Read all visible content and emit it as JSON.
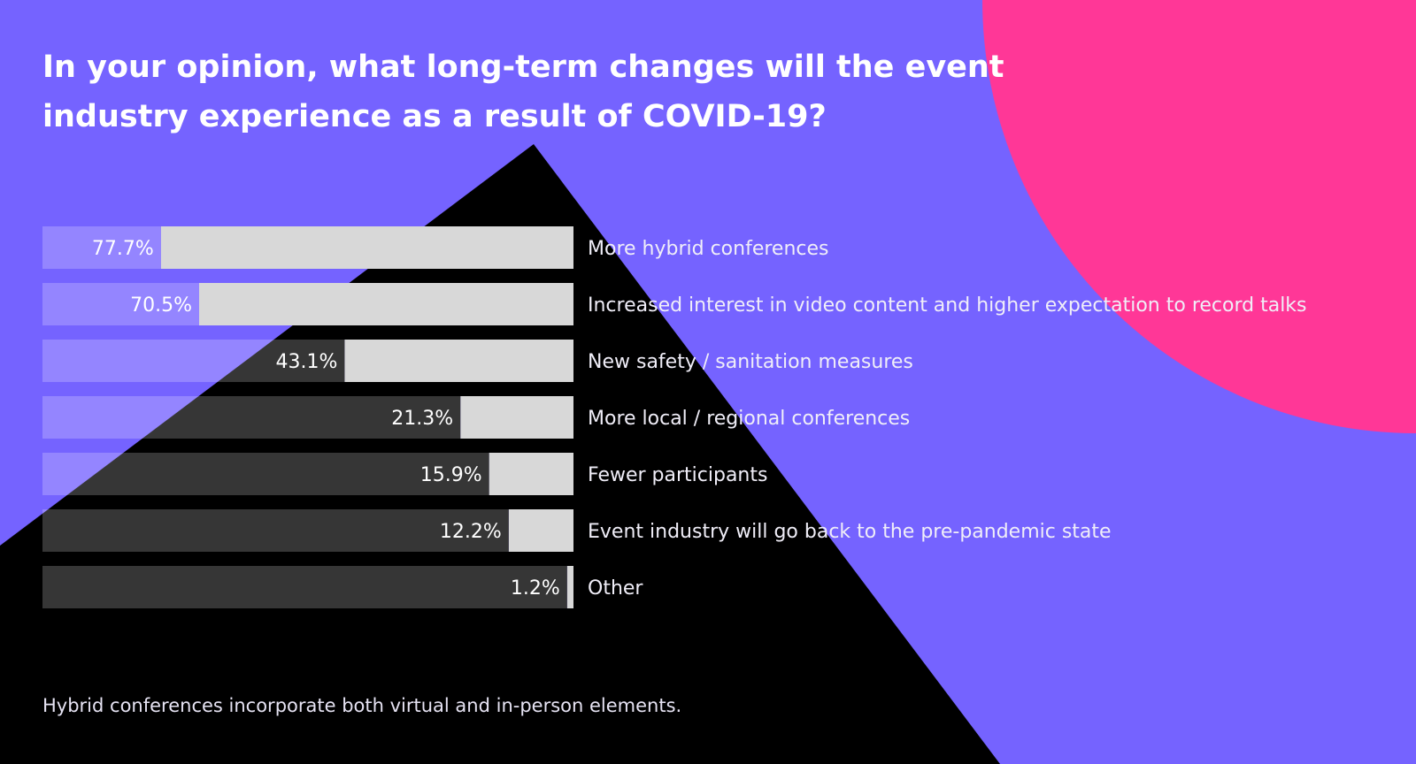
{
  "title": "In your opinion, what long-term changes will the event industry experience as a result of COVID-19?",
  "footnote": "Hybrid conferences incorporate both virtual and in-person elements.",
  "colors": {
    "background": "#7563ff",
    "decor_pink": "#ff3797",
    "decor_black": "#000000",
    "bar_remainder": "#d8d8d8",
    "bar_value_on_purple": "#9485ff",
    "bar_value_on_black": "#363636",
    "label_text": "#f0eef8"
  },
  "chart_data": {
    "type": "bar",
    "orientation": "horizontal",
    "categories": [
      "More hybrid conferences",
      "Increased interest in video content and higher expectation to record talks",
      "New safety / sanitation measures",
      "More local / regional conferences",
      "Fewer participants",
      "Event industry will go back to the pre-pandemic state",
      "Other"
    ],
    "values": [
      77.7,
      70.5,
      43.1,
      21.3,
      15.9,
      12.2,
      1.2
    ],
    "value_labels": [
      "77.7%",
      "70.5%",
      "43.1%",
      "21.3%",
      "15.9%",
      "12.2%",
      "1.2%"
    ],
    "unit": "%",
    "xlim": [
      0,
      100
    ],
    "grid": false,
    "legend": "none"
  }
}
